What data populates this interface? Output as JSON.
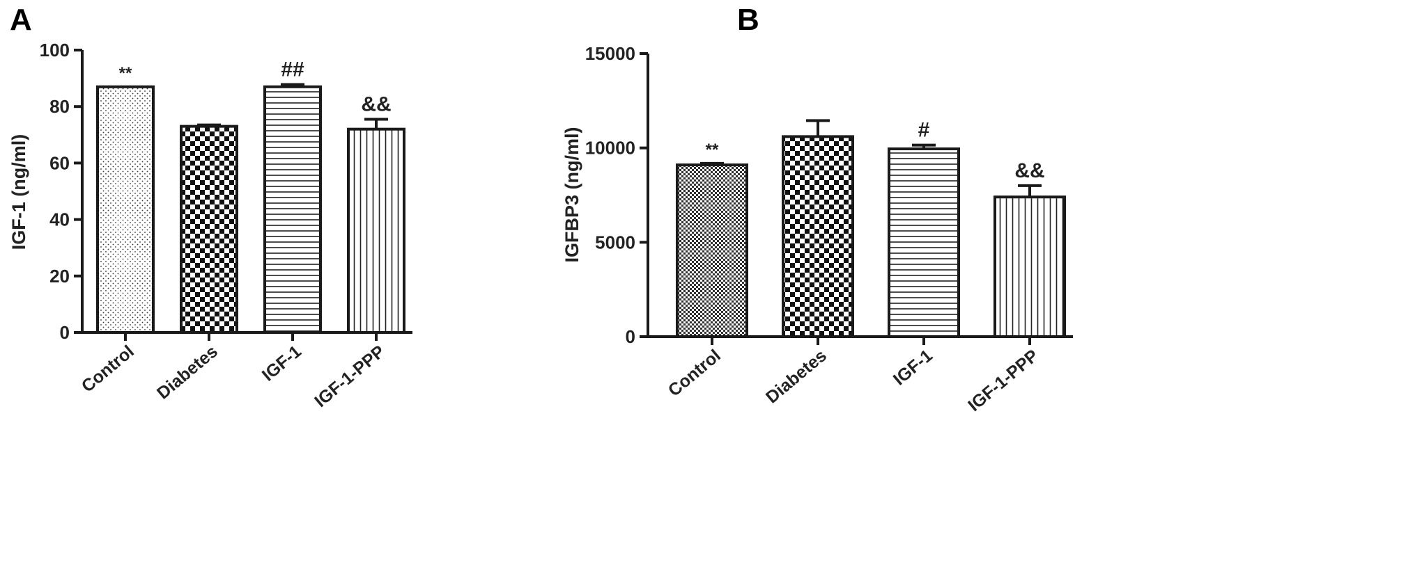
{
  "panels": [
    {
      "label": "A"
    },
    {
      "label": "B"
    }
  ],
  "colors": {
    "stroke": "#1a1a1a",
    "text": "#222222",
    "background": "#ffffff"
  },
  "chart_data": [
    {
      "type": "bar",
      "title": "",
      "ylabel": "IGF-1 (ng/ml)",
      "xlabel": "",
      "ylim": [
        0,
        100
      ],
      "yticks": [
        0,
        20,
        40,
        60,
        80,
        100
      ],
      "categories": [
        "Control",
        "Diabetes",
        "IGF-1",
        "IGF-1-PPP"
      ],
      "values": [
        87,
        73,
        87,
        72
      ],
      "errors": [
        0,
        0.5,
        0.8,
        3.5
      ],
      "annotations": [
        "**",
        "",
        "##",
        "&&"
      ],
      "patterns": [
        "dots",
        "checker",
        "hlines",
        "vlines"
      ],
      "grid": false,
      "legend": "none"
    },
    {
      "type": "bar",
      "title": "",
      "ylabel": "IGFBP3 (ng/ml)",
      "xlabel": "",
      "ylim": [
        0,
        15000
      ],
      "yticks": [
        0,
        5000,
        10000,
        15000
      ],
      "categories": [
        "Control",
        "Diabetes",
        "IGF-1",
        "IGF-1-PPP"
      ],
      "values": [
        9100,
        10600,
        9950,
        7400
      ],
      "errors": [
        80,
        850,
        200,
        600
      ],
      "annotations": [
        "**",
        "",
        "#",
        "&&"
      ],
      "patterns": [
        "fine-checker",
        "checker",
        "hlines",
        "vlines"
      ],
      "grid": false,
      "legend": "none"
    }
  ]
}
